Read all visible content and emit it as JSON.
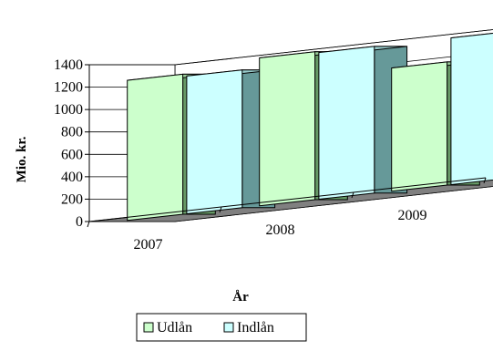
{
  "chart_data": {
    "type": "bar",
    "title": "",
    "xlabel": "År",
    "ylabel": "Mio. kr.",
    "categories": [
      "2007",
      "2008",
      "2009"
    ],
    "series": [
      {
        "name": "Udlån",
        "values": [
          1250,
          1320,
          1100
        ]
      },
      {
        "name": "Indlån",
        "values": [
          1230,
          1310,
          1310
        ]
      }
    ],
    "ylim": [
      0,
      1400
    ],
    "yticks": [
      "0",
      "200",
      "400",
      "600",
      "800",
      "1000",
      "1200",
      "1400"
    ],
    "grid": true,
    "legend_position": "bottom",
    "colors": {
      "Udlån": {
        "front": "#ccffcc",
        "top": "#99cc99",
        "side": "#669966"
      },
      "Indlån": {
        "front": "#ccffff",
        "top": "#99cccc",
        "side": "#669999"
      },
      "floor": "#808080",
      "walls": "#ffffff"
    }
  }
}
